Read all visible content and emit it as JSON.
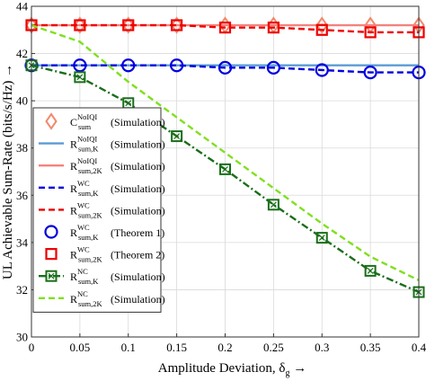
{
  "chart_data": {
    "type": "line",
    "xlabel": "Amplitude Deviation, δ",
    "xlabel_sub": "g",
    "xlabel_suffix": " →",
    "ylabel": "UL Achievable Sum-Rate (bits/s/Hz) →",
    "xlim": [
      0,
      0.4
    ],
    "ylim": [
      30,
      44
    ],
    "xticks": [
      "0",
      "0.05",
      "0.1",
      "0.15",
      "0.2",
      "0.25",
      "0.3",
      "0.35",
      "0.4"
    ],
    "yticks": [
      "30",
      "32",
      "34",
      "36",
      "38",
      "40",
      "42",
      "44"
    ],
    "grid": true,
    "legend_position": "left",
    "x": [
      0,
      0.05,
      0.1,
      0.15,
      0.2,
      0.25,
      0.3,
      0.35,
      0.4
    ],
    "series": [
      {
        "name": "C_sum^NoIQI (Simulation)",
        "base": "C",
        "sup": "NoIQI",
        "sub": "sum",
        "note": "(Simulation)",
        "color": "#f08a6e",
        "style": "marker-only",
        "marker": "diamond",
        "values": [
          43.2,
          43.2,
          43.2,
          43.2,
          43.2,
          43.2,
          43.2,
          43.2,
          43.2
        ]
      },
      {
        "name": "R_sum,K^NoIQI (Simulation)",
        "base": "R",
        "sup": "NoIQI",
        "sub": "sum,K",
        "note": "(Simulation)",
        "color": "#5b9bd5",
        "style": "solid",
        "marker": "none",
        "values": [
          41.5,
          41.5,
          41.5,
          41.5,
          41.5,
          41.5,
          41.5,
          41.5,
          41.5
        ]
      },
      {
        "name": "R_sum,2K^NoIQI (Simulation)",
        "base": "R",
        "sup": "NoIQI",
        "sub": "sum,2K",
        "note": "(Simulation)",
        "color": "#f4837d",
        "style": "solid",
        "marker": "none",
        "values": [
          43.2,
          43.2,
          43.2,
          43.2,
          43.2,
          43.2,
          43.2,
          43.2,
          43.2
        ]
      },
      {
        "name": "R_sum,K^WC (Simulation)",
        "base": "R",
        "sup": "WC",
        "sub": "sum,K",
        "note": "(Simulation)",
        "color": "#0000dd",
        "style": "dashed",
        "marker": "none",
        "values": [
          41.5,
          41.5,
          41.5,
          41.5,
          41.4,
          41.4,
          41.3,
          41.2,
          41.2
        ]
      },
      {
        "name": "R_sum,2K^WC (Simulation)",
        "base": "R",
        "sup": "WC",
        "sub": "sum,2K",
        "note": "(Simulation)",
        "color": "#ee0000",
        "style": "dashed",
        "marker": "none",
        "values": [
          43.2,
          43.2,
          43.2,
          43.2,
          43.1,
          43.1,
          43.0,
          42.9,
          42.9
        ]
      },
      {
        "name": "R_sum,K^WC (Theorem 1)",
        "base": "R",
        "sup": "WC",
        "sub": "sum,K",
        "note": "(Theorem 1)",
        "color": "#0000dd",
        "style": "marker-only",
        "marker": "circle",
        "values": [
          41.5,
          41.5,
          41.5,
          41.5,
          41.4,
          41.4,
          41.3,
          41.2,
          41.2
        ]
      },
      {
        "name": "R_sum,2K^WC (Theorem 2)",
        "base": "R",
        "sup": "WC",
        "sub": "sum,2K",
        "note": "(Theorem 2)",
        "color": "#ee0000",
        "style": "marker-only",
        "marker": "square",
        "values": [
          43.2,
          43.2,
          43.2,
          43.2,
          43.1,
          43.1,
          43.0,
          42.9,
          42.9
        ]
      },
      {
        "name": "R_sum,K^NC (Simulation)",
        "base": "R",
        "sup": "NC",
        "sub": "sum,K",
        "note": "(Simulation)",
        "color": "#1a6e1a",
        "style": "dashdot",
        "marker": "square-x",
        "values": [
          41.5,
          41.0,
          39.9,
          38.5,
          37.1,
          35.6,
          34.2,
          32.8,
          31.9
        ]
      },
      {
        "name": "R_sum,2K^NC (Simulation)",
        "base": "R",
        "sup": "NC",
        "sub": "sum,2K",
        "note": "(Simulation)",
        "color": "#7fe01e",
        "style": "dashed",
        "marker": "none",
        "values": [
          43.2,
          42.5,
          40.8,
          39.3,
          37.8,
          36.3,
          34.8,
          33.4,
          32.4
        ]
      }
    ]
  }
}
